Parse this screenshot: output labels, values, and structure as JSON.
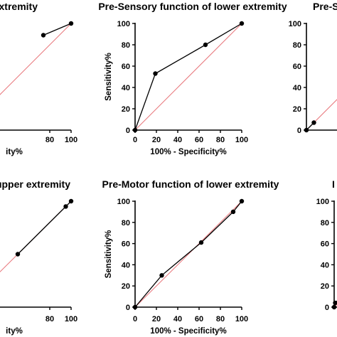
{
  "chart_data": [
    {
      "type": "line",
      "title": "upper extremity",
      "xlabel": "ity%",
      "ylabel": "",
      "xlim": [
        0,
        100
      ],
      "ylim": [
        0,
        100
      ],
      "x_ticks": [
        "80",
        "100"
      ],
      "y_ticks": [],
      "series": [
        {
          "points": [
            [
              74,
              89
            ],
            [
              100,
              100
            ]
          ],
          "color": "#000000"
        },
        {
          "points": [
            [
              0,
              0
            ],
            [
              100,
              100
            ]
          ],
          "color": "#e8757a"
        }
      ]
    },
    {
      "type": "line",
      "title": "Pre-Sensory function of lower extremity",
      "xlabel": "100% - Specificity%",
      "ylabel": "Sensitivity%",
      "xlim": [
        0,
        100
      ],
      "ylim": [
        0,
        100
      ],
      "x_ticks": [
        "0",
        "20",
        "40",
        "60",
        "80",
        "100"
      ],
      "y_ticks": [
        "0",
        "20",
        "40",
        "60",
        "80",
        "100"
      ],
      "series": [
        {
          "points": [
            [
              0,
              0
            ],
            [
              19,
              53
            ],
            [
              66,
              80
            ],
            [
              100,
              100
            ]
          ],
          "color": "#000000"
        },
        {
          "points": [
            [
              0,
              0
            ],
            [
              100,
              100
            ]
          ],
          "color": "#e8757a"
        }
      ]
    },
    {
      "type": "line",
      "title": "Pre-S",
      "xlabel": "",
      "ylabel": "",
      "xlim": [
        0,
        100
      ],
      "ylim": [
        0,
        100
      ],
      "x_ticks": [],
      "y_ticks": [
        "0",
        "20",
        "40",
        "60",
        "80",
        "100"
      ],
      "series": [
        {
          "points": [
            [
              0,
              0
            ],
            [
              7,
              7
            ]
          ],
          "color": "#000000"
        },
        {
          "points": [
            [
              0,
              0
            ],
            [
              100,
              100
            ]
          ],
          "color": "#e8757a"
        }
      ]
    },
    {
      "type": "line",
      "title": "upper extremity",
      "xlabel": "ity%",
      "ylabel": "",
      "xlim": [
        0,
        100
      ],
      "ylim": [
        0,
        100
      ],
      "x_ticks": [
        "80",
        "100"
      ],
      "y_ticks": [],
      "series": [
        {
          "points": [
            [
              50,
              50
            ],
            [
              95,
              95
            ],
            [
              100,
              100
            ]
          ],
          "color": "#000000"
        },
        {
          "points": [
            [
              0,
              0
            ],
            [
              100,
              100
            ]
          ],
          "color": "#e8757a"
        }
      ]
    },
    {
      "type": "line",
      "title": "Pre-Motor function of lower extremity",
      "xlabel": "100% - Specificity%",
      "ylabel": "Sensitivity%",
      "xlim": [
        0,
        100
      ],
      "ylim": [
        0,
        100
      ],
      "x_ticks": [
        "0",
        "20",
        "40",
        "60",
        "80",
        "100"
      ],
      "y_ticks": [
        "0",
        "20",
        "40",
        "60",
        "80",
        "100"
      ],
      "series": [
        {
          "points": [
            [
              0,
              0
            ],
            [
              25,
              30
            ],
            [
              62,
              61
            ],
            [
              92,
              90
            ],
            [
              100,
              100
            ]
          ],
          "color": "#000000"
        },
        {
          "points": [
            [
              0,
              0
            ],
            [
              100,
              100
            ]
          ],
          "color": "#e8757a"
        }
      ]
    },
    {
      "type": "line",
      "title": "I",
      "xlabel": "",
      "ylabel": "",
      "xlim": [
        0,
        100
      ],
      "ylim": [
        0,
        100
      ],
      "x_ticks": [],
      "y_ticks": [
        "0",
        "20",
        "40",
        "60",
        "80",
        "100"
      ],
      "series": [
        {
          "points": [
            [
              0,
              0
            ],
            [
              1,
              4
            ],
            [
              7,
              10
            ]
          ],
          "color": "#000000"
        },
        {
          "points": [
            [
              0,
              0
            ],
            [
              100,
              100
            ]
          ],
          "color": "#e8757a"
        }
      ]
    }
  ]
}
